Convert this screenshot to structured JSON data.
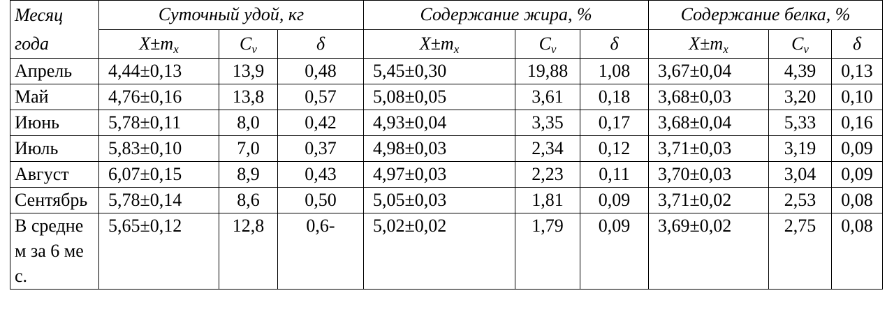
{
  "table": {
    "header": {
      "month": "Месяц года",
      "groups": [
        "Суточный удой, кг",
        "Содержание жира, %",
        "Содержание белка, %"
      ],
      "subheaders": [
        {
          "main": "X±m",
          "sub": "x"
        },
        {
          "main": "C",
          "sub": "v"
        },
        {
          "main": "δ"
        },
        {
          "main": "X±m",
          "sub": "x"
        },
        {
          "main": "C",
          "sub": "v"
        },
        {
          "main": "δ"
        },
        {
          "main": "X±m",
          "sub": "x"
        },
        {
          "main": "C",
          "sub": "v"
        },
        {
          "main": "δ"
        }
      ]
    },
    "rows": [
      [
        "Апрель",
        "4,44±0,13",
        "13,9",
        "0,48",
        "5,45±0,30",
        "19,88",
        "1,08",
        "3,67±0,04",
        "4,39",
        "0,13"
      ],
      [
        "Май",
        "4,76±0,16",
        "13,8",
        "0,57",
        "5,08±0,05",
        "3,61",
        "0,18",
        "3,68±0,03",
        "3,20",
        "0,10"
      ],
      [
        "Июнь",
        "5,78±0,11",
        "8,0",
        "0,42",
        "4,93±0,04",
        "3,35",
        "0,17",
        "3,68±0,04",
        "5,33",
        "0,16"
      ],
      [
        "Июль",
        "5,83±0,10",
        "7,0",
        "0,37",
        "4,98±0,03",
        "2,34",
        "0,12",
        "3,71±0,03",
        "3,19",
        "0,09"
      ],
      [
        "Август",
        "6,07±0,15",
        "8,9",
        "0,43",
        "4,97±0,03",
        "2,23",
        "0,11",
        "3,70±0,03",
        "3,04",
        "0,09"
      ],
      [
        "Сентябрь",
        "5,78±0,14",
        "8,6",
        "0,50",
        "5,05±0,03",
        "1,81",
        "0,09",
        "3,71±0,02",
        "2,53",
        "0,08"
      ],
      [
        "В среднем за 6 мес.",
        "5,65±0,12",
        "12,8",
        "0,6-",
        "5,02±0,02",
        "1,79",
        "0,09",
        "3,69±0,02",
        "2,75",
        "0,08"
      ]
    ]
  }
}
